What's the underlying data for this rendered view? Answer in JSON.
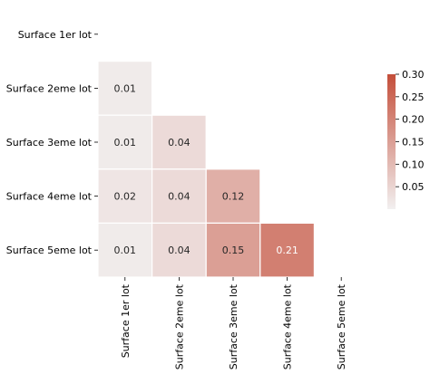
{
  "chart_data": {
    "type": "heatmap",
    "title": "",
    "xlabel": "",
    "ylabel": "",
    "rows": [
      "Surface 1er lot",
      "Surface 2eme lot",
      "Surface 3eme lot",
      "Surface 4eme lot",
      "Surface 5eme lot"
    ],
    "columns": [
      "Surface 1er lot",
      "Surface 2eme lot",
      "Surface 3eme lot",
      "Surface 4eme lot",
      "Surface 5eme lot"
    ],
    "values": [
      [
        null,
        null,
        null,
        null,
        null
      ],
      [
        0.01,
        null,
        null,
        null,
        null
      ],
      [
        0.01,
        0.04,
        null,
        null,
        null
      ],
      [
        0.02,
        0.04,
        0.12,
        null,
        null
      ],
      [
        0.01,
        0.04,
        0.15,
        0.21,
        null
      ]
    ],
    "mask": "upper triangle including diagonal",
    "colorbar": {
      "range": [
        0.0,
        0.3
      ],
      "ticks": [
        "0.05",
        "0.10",
        "0.15",
        "0.20",
        "0.25",
        "0.30"
      ],
      "low_color": "#f2f0f0",
      "high_color": "#c44e3a"
    },
    "cell_separator_color": "#ffffff"
  }
}
